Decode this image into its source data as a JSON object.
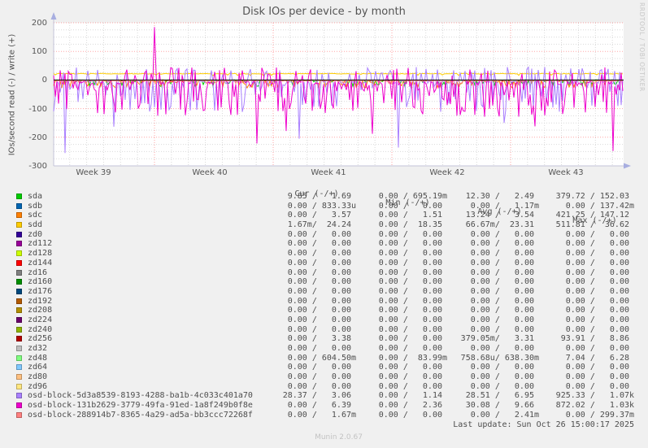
{
  "title": "Disk IOs per device - by month",
  "watermark": "Munin 2.0.67",
  "rrd_credit": "RRDTOOL / TOBI OETIKER",
  "last_update": "Last update: Sun Oct 26 15:00:17 2025",
  "legend": {
    "headers": [
      "Cur (-/+)",
      "Min (-/+)",
      "Avg (-/+)",
      "Max (-/+)"
    ]
  },
  "chart_data": {
    "type": "line",
    "title": "Disk IOs per device - by month",
    "ylabel": "IOs/second read (-) / write (+)",
    "xlabel": "",
    "ylim": [
      -300,
      200
    ],
    "yticks": [
      200,
      100,
      0,
      -100,
      -200,
      -300
    ],
    "x_categories": [
      "Week 39",
      "Week 40",
      "Week 41",
      "Week 42",
      "Week 43"
    ],
    "grid": {
      "minor_color": "#d9d9d9",
      "major_color": "rgba(255,0,0,0.35)",
      "zero_line_color": "#000000",
      "axis_color": "#c3c3d8",
      "arrow_color": "#a8aee0",
      "plot_bg": "#ffffff",
      "minor_y_step": 25,
      "major_y_step": 100,
      "minor_x_unit": "day",
      "major_x_unit": "week"
    },
    "legend_position": "bottom",
    "notable_events": [
      {
        "series": "osd-block-131b2629-3779-49fa-91ed-1a8f249b0f8e",
        "description": "large write spike at start of Week 40",
        "value": 185
      }
    ],
    "series": [
      {
        "name": "sda",
        "color": "#00CC00",
        "stats": {
          "cur": [
            "9.85",
            "1.69"
          ],
          "min": [
            "0.00",
            "695.19m"
          ],
          "avg": [
            "12.30",
            "2.49"
          ],
          "max": [
            "379.72",
            "152.03"
          ]
        },
        "render": {
          "seed": 11,
          "base": -1,
          "noise": 1.5,
          "spike_prob": 0.22,
          "spike_min": 3,
          "spike_max": 22
        }
      },
      {
        "name": "sdb",
        "color": "#0066B3",
        "stats": {
          "cur": [
            "0.00",
            "833.33u"
          ],
          "min": [
            "0.00",
            "0.00"
          ],
          "avg": [
            "0.00",
            "1.17m"
          ],
          "max": [
            "0.00",
            "137.42m"
          ]
        }
      },
      {
        "name": "sdc",
        "color": "#FF8000",
        "stats": {
          "cur": [
            "0.00",
            "3.57"
          ],
          "min": [
            "0.00",
            "1.51"
          ],
          "avg": [
            "13.24",
            "3.54"
          ],
          "max": [
            "421.25",
            "147.12"
          ]
        },
        "render": {
          "seed": 23,
          "base": -2,
          "noise": 2,
          "spike_prob": 0.28,
          "spike_min": 3,
          "spike_max": 26
        }
      },
      {
        "name": "sdd",
        "color": "#FFCC00",
        "stats": {
          "cur": [
            "1.67m",
            "24.24"
          ],
          "min": [
            "0.00",
            "18.35"
          ],
          "avg": [
            "66.67m",
            "23.31"
          ],
          "max": [
            "511.81",
            "36.62"
          ]
        },
        "render": {
          "seed": 31,
          "base": 22,
          "noise": 1.2,
          "spike_prob": 0.05,
          "spike_min": 2,
          "spike_max": 7
        }
      },
      {
        "name": "zd0",
        "color": "#330099",
        "stats": {
          "cur": [
            "0.00",
            "0.00"
          ],
          "min": [
            "0.00",
            "0.00"
          ],
          "avg": [
            "0.00",
            "0.00"
          ],
          "max": [
            "0.00",
            "0.00"
          ]
        }
      },
      {
        "name": "zd112",
        "color": "#990099",
        "stats": {
          "cur": [
            "0.00",
            "0.00"
          ],
          "min": [
            "0.00",
            "0.00"
          ],
          "avg": [
            "0.00",
            "0.00"
          ],
          "max": [
            "0.00",
            "0.00"
          ]
        }
      },
      {
        "name": "zd128",
        "color": "#CCFF00",
        "stats": {
          "cur": [
            "0.00",
            "0.00"
          ],
          "min": [
            "0.00",
            "0.00"
          ],
          "avg": [
            "0.00",
            "0.00"
          ],
          "max": [
            "0.00",
            "0.00"
          ]
        }
      },
      {
        "name": "zd144",
        "color": "#FF0000",
        "stats": {
          "cur": [
            "0.00",
            "0.00"
          ],
          "min": [
            "0.00",
            "0.00"
          ],
          "avg": [
            "0.00",
            "0.00"
          ],
          "max": [
            "0.00",
            "0.00"
          ]
        }
      },
      {
        "name": "zd16",
        "color": "#808080",
        "stats": {
          "cur": [
            "0.00",
            "0.00"
          ],
          "min": [
            "0.00",
            "0.00"
          ],
          "avg": [
            "0.00",
            "0.00"
          ],
          "max": [
            "0.00",
            "0.00"
          ]
        }
      },
      {
        "name": "zd160",
        "color": "#008F00",
        "stats": {
          "cur": [
            "0.00",
            "0.00"
          ],
          "min": [
            "0.00",
            "0.00"
          ],
          "avg": [
            "0.00",
            "0.00"
          ],
          "max": [
            "0.00",
            "0.00"
          ]
        }
      },
      {
        "name": "zd176",
        "color": "#00487D",
        "stats": {
          "cur": [
            "0.00",
            "0.00"
          ],
          "min": [
            "0.00",
            "0.00"
          ],
          "avg": [
            "0.00",
            "0.00"
          ],
          "max": [
            "0.00",
            "0.00"
          ]
        }
      },
      {
        "name": "zd192",
        "color": "#B35A00",
        "stats": {
          "cur": [
            "0.00",
            "0.00"
          ],
          "min": [
            "0.00",
            "0.00"
          ],
          "avg": [
            "0.00",
            "0.00"
          ],
          "max": [
            "0.00",
            "0.00"
          ]
        }
      },
      {
        "name": "zd208",
        "color": "#B38F00",
        "stats": {
          "cur": [
            "0.00",
            "0.00"
          ],
          "min": [
            "0.00",
            "0.00"
          ],
          "avg": [
            "0.00",
            "0.00"
          ],
          "max": [
            "0.00",
            "0.00"
          ]
        }
      },
      {
        "name": "zd224",
        "color": "#6B006B",
        "stats": {
          "cur": [
            "0.00",
            "0.00"
          ],
          "min": [
            "0.00",
            "0.00"
          ],
          "avg": [
            "0.00",
            "0.00"
          ],
          "max": [
            "0.00",
            "0.00"
          ]
        }
      },
      {
        "name": "zd240",
        "color": "#8FB300",
        "stats": {
          "cur": [
            "0.00",
            "0.00"
          ],
          "min": [
            "0.00",
            "0.00"
          ],
          "avg": [
            "0.00",
            "0.00"
          ],
          "max": [
            "0.00",
            "0.00"
          ]
        }
      },
      {
        "name": "zd256",
        "color": "#B30000",
        "stats": {
          "cur": [
            "0.00",
            "3.38"
          ],
          "min": [
            "0.00",
            "0.00"
          ],
          "avg": [
            "379.05m",
            "3.31"
          ],
          "max": [
            "93.91",
            "8.86"
          ]
        },
        "render": {
          "seed": 41,
          "base": -1.5,
          "noise": 0.8,
          "spike_prob": 0.04,
          "spike_min": 1,
          "spike_max": 5
        }
      },
      {
        "name": "zd32",
        "color": "#BEBEBE",
        "stats": {
          "cur": [
            "0.00",
            "0.00"
          ],
          "min": [
            "0.00",
            "0.00"
          ],
          "avg": [
            "0.00",
            "0.00"
          ],
          "max": [
            "0.00",
            "0.00"
          ]
        }
      },
      {
        "name": "zd48",
        "color": "#80FF80",
        "stats": {
          "cur": [
            "0.00",
            "604.50m"
          ],
          "min": [
            "0.00",
            "83.99m"
          ],
          "avg": [
            "758.68u",
            "638.30m"
          ],
          "max": [
            "7.04",
            "6.28"
          ]
        },
        "render": {
          "seed": 43,
          "base": -0.7,
          "noise": 0.8,
          "spike_prob": 0.05,
          "spike_min": 1,
          "spike_max": 4
        }
      },
      {
        "name": "zd64",
        "color": "#80C9FF",
        "stats": {
          "cur": [
            "0.00",
            "0.00"
          ],
          "min": [
            "0.00",
            "0.00"
          ],
          "avg": [
            "0.00",
            "0.00"
          ],
          "max": [
            "0.00",
            "0.00"
          ]
        }
      },
      {
        "name": "zd80",
        "color": "#FFC080",
        "stats": {
          "cur": [
            "0.00",
            "0.00"
          ],
          "min": [
            "0.00",
            "0.00"
          ],
          "avg": [
            "0.00",
            "0.00"
          ],
          "max": [
            "0.00",
            "0.00"
          ]
        }
      },
      {
        "name": "zd96",
        "color": "#FFE680",
        "stats": {
          "cur": [
            "0.00",
            "0.00"
          ],
          "min": [
            "0.00",
            "0.00"
          ],
          "avg": [
            "0.00",
            "0.00"
          ],
          "max": [
            "0.00",
            "0.00"
          ]
        }
      },
      {
        "name": "osd-block-5d3a8539-8193-4288-ba1b-4c033c401a70",
        "color": "#AA80FF",
        "stats": {
          "cur": [
            "28.37",
            "3.06"
          ],
          "min": [
            "0.00",
            "1.14"
          ],
          "avg": [
            "28.51",
            "6.95"
          ],
          "max": [
            "925.33",
            "1.07k"
          ]
        },
        "render": {
          "seed": 7,
          "base": -7,
          "noise": 6,
          "spike_prob": 0.42,
          "spike_min": 8,
          "spike_max": 105,
          "bump_prob": 0.2,
          "bump_min": 18,
          "bump_max": 46,
          "deep": [
            [
              0.021,
              -255
            ],
            [
              0.105,
              -163
            ],
            [
              0.43,
              -205
            ],
            [
              0.605,
              -236
            ],
            [
              0.79,
              -150
            ]
          ]
        }
      },
      {
        "name": "osd-block-131b2629-3779-49fa-91ed-1a8f249b0f8e",
        "color": "#EE00CC",
        "stats": {
          "cur": [
            "0.00",
            "6.39"
          ],
          "min": [
            "0.00",
            "2.36"
          ],
          "avg": [
            "30.08",
            "9.66"
          ],
          "max": [
            "872.02",
            "1.03k"
          ]
        },
        "render": {
          "seed": 13,
          "base": -9,
          "noise": 7,
          "spike_prob": 0.5,
          "spike_min": 8,
          "spike_max": 125,
          "bump_prob": 0.16,
          "bump_min": 15,
          "bump_max": 44,
          "deep": [
            [
              0.357,
              -222
            ],
            [
              0.407,
              -178
            ],
            [
              0.56,
              -188
            ],
            [
              0.845,
              -162
            ],
            [
              0.982,
              -248
            ]
          ],
          "big": [
            0.177,
            185
          ]
        }
      },
      {
        "name": "osd-block-288914b7-8365-4a29-ad5a-bb3ccc72268f",
        "color": "#FF8080",
        "stats": {
          "cur": [
            "0.00",
            "1.67m"
          ],
          "min": [
            "0.00",
            "0.00"
          ],
          "avg": [
            "0.00",
            "2.41m"
          ],
          "max": [
            "0.00",
            "299.37m"
          ]
        },
        "render": {
          "seed": 17,
          "base": -1.5,
          "noise": 1.5,
          "spike_prob": 0.1,
          "spike_min": 2,
          "spike_max": 12
        }
      }
    ]
  }
}
